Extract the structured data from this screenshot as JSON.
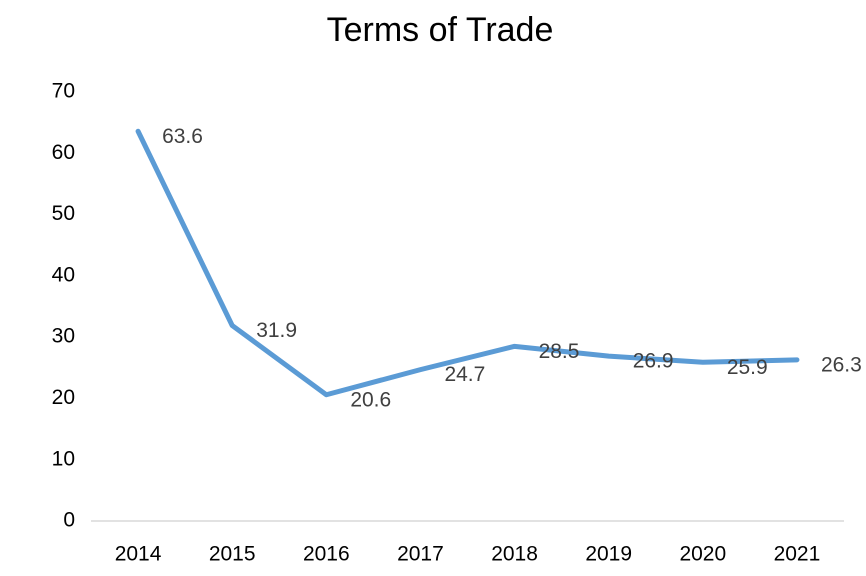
{
  "chart_data": {
    "type": "line",
    "title": "Terms of Trade",
    "categories": [
      "2014",
      "2015",
      "2016",
      "2017",
      "2018",
      "2019",
      "2020",
      "2021"
    ],
    "values": [
      63.6,
      31.9,
      20.6,
      24.7,
      28.5,
      26.9,
      25.9,
      26.3
    ],
    "color": "#5b9bd5",
    "ylim": [
      0,
      70
    ],
    "yticks": [
      0,
      10,
      20,
      30,
      40,
      50,
      60,
      70
    ],
    "grid": false
  }
}
